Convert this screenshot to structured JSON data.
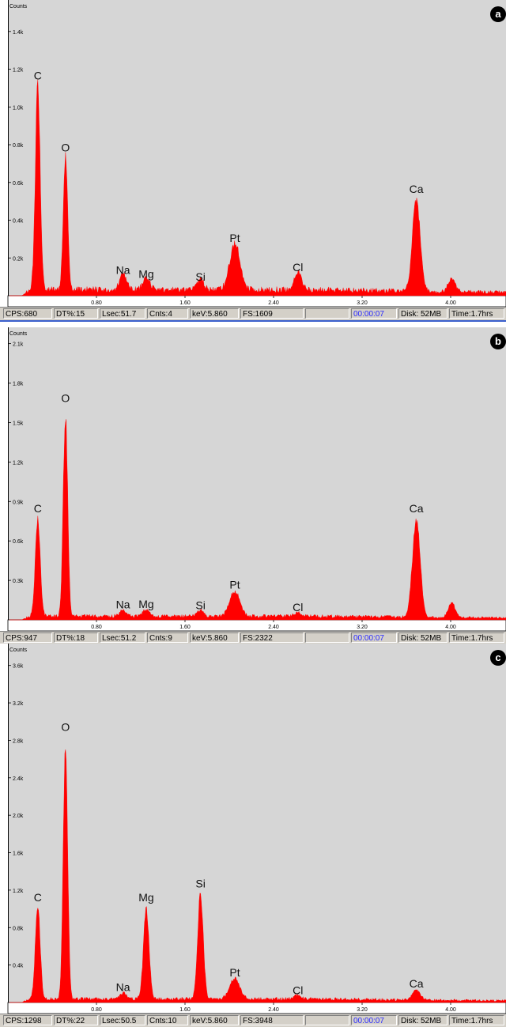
{
  "chart_data": [
    {
      "type": "line",
      "panel_label": "a",
      "ylabel": "Counts",
      "y_ticks": [
        "0.2k",
        "0.4k",
        "0.6k",
        "0.8k",
        "1.0k",
        "1.2k",
        "1.4k"
      ],
      "y_tick_values": [
        200,
        400,
        600,
        800,
        1000,
        1200,
        1400
      ],
      "ylim": [
        0,
        1550
      ],
      "x_ticks": [
        "0.80",
        "1.60",
        "2.40",
        "3.20",
        "4.00"
      ],
      "x_tick_values": [
        0.8,
        1.6,
        2.4,
        3.2,
        4.0
      ],
      "xlim": [
        0,
        4.5
      ],
      "baseline": 35,
      "peaks": [
        {
          "element": "C",
          "x": 0.27,
          "y": 1120,
          "w": 0.022
        },
        {
          "element": "O",
          "x": 0.52,
          "y": 740,
          "w": 0.02
        },
        {
          "element": "Na",
          "x": 1.04,
          "y": 90,
          "w": 0.03
        },
        {
          "element": "Mg",
          "x": 1.25,
          "y": 70,
          "w": 0.03
        },
        {
          "element": "Si",
          "x": 1.74,
          "y": 55,
          "w": 0.03
        },
        {
          "element": "Pt",
          "x": 2.05,
          "y": 260,
          "w": 0.045
        },
        {
          "element": "Cl",
          "x": 2.62,
          "y": 105,
          "w": 0.03
        },
        {
          "element": "Ca",
          "x": 3.69,
          "y": 520,
          "w": 0.035
        },
        {
          "element": "",
          "x": 4.01,
          "y": 80,
          "w": 0.03
        }
      ],
      "status": {
        "cps": "CPS:680",
        "dt": "DT%:15",
        "lsec": "Lsec:51.7",
        "cnts": "Cnts:4",
        "kev": "keV:5.860",
        "fs": "FS:1609",
        "time": "00:00:07",
        "disk": "Disk:  52MB",
        "hrs": "Time:1.7hrs"
      }
    },
    {
      "type": "line",
      "panel_label": "b",
      "ylabel": "Counts",
      "y_ticks": [
        "0.3k",
        "0.6k",
        "0.9k",
        "1.2k",
        "1.5k",
        "1.8k",
        "2.1k"
      ],
      "y_tick_values": [
        300,
        600,
        900,
        1200,
        1500,
        1800,
        2100
      ],
      "ylim": [
        0,
        2200
      ],
      "x_ticks": [
        "0.80",
        "1.60",
        "2.40",
        "3.20",
        "4.00"
      ],
      "x_tick_values": [
        0.8,
        1.6,
        2.4,
        3.2,
        4.0
      ],
      "xlim": [
        0,
        4.5
      ],
      "baseline": 30,
      "peaks": [
        {
          "element": "C",
          "x": 0.27,
          "y": 780,
          "w": 0.022
        },
        {
          "element": "O",
          "x": 0.52,
          "y": 1620,
          "w": 0.02
        },
        {
          "element": "Na",
          "x": 1.04,
          "y": 50,
          "w": 0.03
        },
        {
          "element": "Mg",
          "x": 1.25,
          "y": 55,
          "w": 0.03
        },
        {
          "element": "Si",
          "x": 1.74,
          "y": 45,
          "w": 0.03
        },
        {
          "element": "Pt",
          "x": 2.05,
          "y": 200,
          "w": 0.045
        },
        {
          "element": "Cl",
          "x": 2.62,
          "y": 30,
          "w": 0.03
        },
        {
          "element": "Ca",
          "x": 3.69,
          "y": 780,
          "w": 0.035
        },
        {
          "element": "",
          "x": 4.01,
          "y": 120,
          "w": 0.03
        }
      ],
      "status": {
        "cps": "CPS:947",
        "dt": "DT%:18",
        "lsec": "Lsec:51.2",
        "cnts": "Cnts:9",
        "kev": "keV:5.860",
        "fs": "FS:2322",
        "time": "00:00:07",
        "disk": "Disk:  52MB",
        "hrs": "Time:1.7hrs"
      }
    },
    {
      "type": "line",
      "panel_label": "c",
      "ylabel": "Counts",
      "y_ticks": [
        "0.4k",
        "0.8k",
        "1.2k",
        "1.6k",
        "2.0k",
        "2.4k",
        "2.8k",
        "3.2k",
        "3.6k"
      ],
      "y_tick_values": [
        400,
        800,
        1200,
        1600,
        2000,
        2400,
        2800,
        3200,
        3600
      ],
      "ylim": [
        0,
        3800
      ],
      "x_ticks": [
        "0.80",
        "1.60",
        "2.40",
        "3.20",
        "4.00"
      ],
      "x_tick_values": [
        0.8,
        1.6,
        2.4,
        3.2,
        4.0
      ],
      "xlim": [
        0,
        4.5
      ],
      "baseline": 40,
      "peaks": [
        {
          "element": "C",
          "x": 0.27,
          "y": 1030,
          "w": 0.022
        },
        {
          "element": "O",
          "x": 0.52,
          "y": 2850,
          "w": 0.02
        },
        {
          "element": "Na",
          "x": 1.04,
          "y": 70,
          "w": 0.03
        },
        {
          "element": "Mg",
          "x": 1.25,
          "y": 1030,
          "w": 0.025
        },
        {
          "element": "Si",
          "x": 1.74,
          "y": 1180,
          "w": 0.025
        },
        {
          "element": "Pt",
          "x": 2.05,
          "y": 230,
          "w": 0.045
        },
        {
          "element": "Cl",
          "x": 2.62,
          "y": 40,
          "w": 0.03
        },
        {
          "element": "Ca",
          "x": 3.69,
          "y": 110,
          "w": 0.035
        }
      ],
      "status": {
        "cps": "CPS:1298",
        "dt": "DT%:22",
        "lsec": "Lsec:50.5",
        "cnts": "Cnts:10",
        "kev": "keV:5.860",
        "fs": "FS:3948",
        "time": "00:00:07",
        "disk": "Disk:  52MB",
        "hrs": "Time:1.7hrs"
      }
    }
  ],
  "colors": {
    "spectrum": "#ff0000",
    "plot_bg": "#d6d6d6",
    "label": "#111111",
    "badge": "#000000"
  }
}
